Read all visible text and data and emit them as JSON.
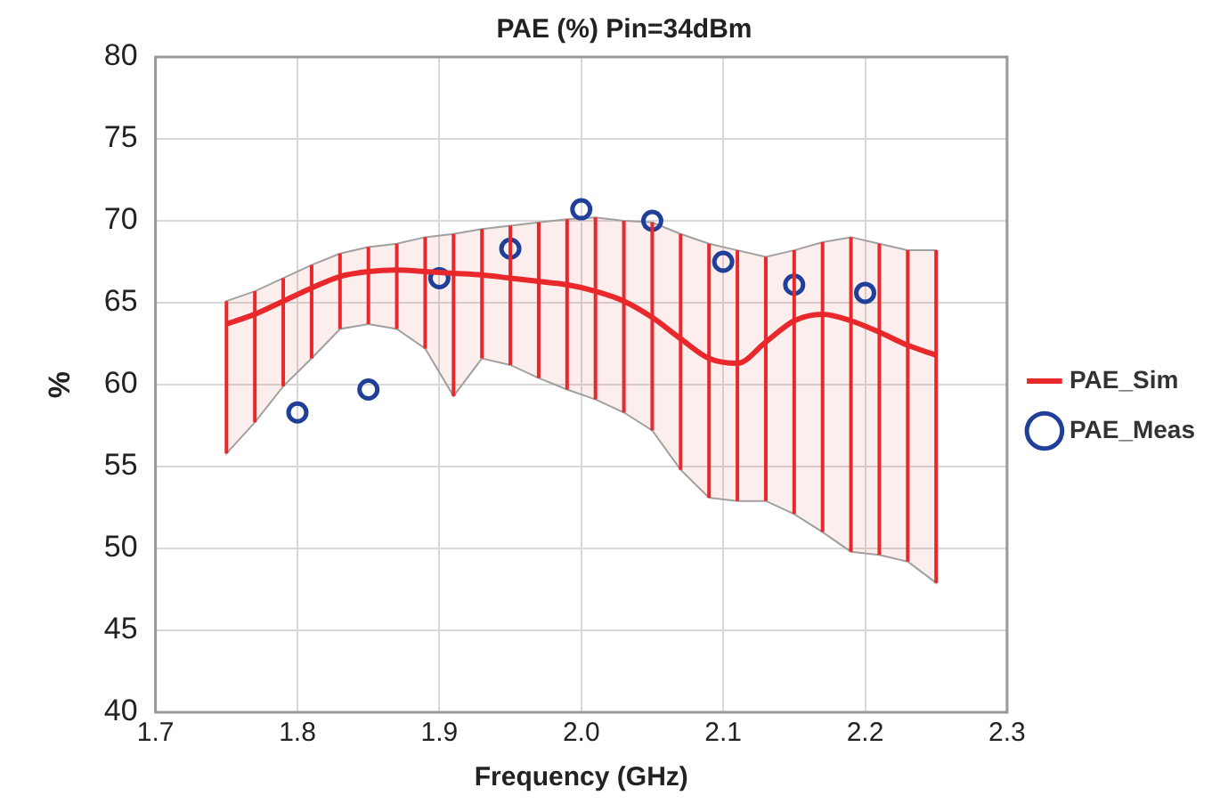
{
  "chart_data": {
    "type": "line",
    "title": "PAE (%) Pin=34dBm",
    "xlabel": "Frequency (GHz)",
    "ylabel": "%",
    "xlim": [
      1.7,
      2.3
    ],
    "xticks": [
      {
        "value": 1.7,
        "label": "1.7"
      },
      {
        "value": 1.8,
        "label": "1.8"
      },
      {
        "value": 1.9,
        "label": "1.9"
      },
      {
        "value": 2.0,
        "label": "2.0"
      },
      {
        "value": 2.1,
        "label": "2.1"
      },
      {
        "value": 2.2,
        "label": "2.2"
      },
      {
        "value": 2.3,
        "label": "2.3"
      }
    ],
    "ylim": [
      40,
      80
    ],
    "yticks": [
      40,
      45,
      50,
      55,
      60,
      65,
      70,
      75,
      80
    ],
    "grid": true,
    "legend": "right",
    "series": [
      {
        "name": "PAE_Sim",
        "color": "#e8282b",
        "marker": "none",
        "line_style": "solid",
        "x": [
          1.75,
          1.77,
          1.79,
          1.81,
          1.83,
          1.85,
          1.87,
          1.89,
          1.91,
          1.93,
          1.95,
          1.97,
          1.99,
          2.01,
          2.03,
          2.05,
          2.07,
          2.09,
          2.11,
          2.13,
          2.15,
          2.17,
          2.19,
          2.21,
          2.23,
          2.25
        ],
        "values": [
          63.7,
          64.3,
          65.1,
          65.9,
          66.6,
          66.9,
          67.0,
          66.9,
          66.8,
          66.7,
          66.5,
          66.3,
          66.1,
          65.7,
          65.1,
          64.1,
          62.8,
          61.6,
          61.3,
          62.6,
          63.9,
          64.3,
          63.9,
          63.2,
          62.4,
          61.8
        ],
        "upper": [
          65.1,
          65.7,
          66.5,
          67.3,
          68.0,
          68.4,
          68.6,
          69.0,
          69.2,
          69.5,
          69.7,
          69.9,
          70.1,
          70.2,
          70.0,
          69.9,
          69.2,
          68.6,
          68.2,
          67.8,
          68.2,
          68.7,
          69.0,
          68.6,
          68.2,
          68.2
        ],
        "lower": [
          55.8,
          57.7,
          59.9,
          61.6,
          63.4,
          63.7,
          63.4,
          62.2,
          59.3,
          61.6,
          61.2,
          60.4,
          59.7,
          59.1,
          58.3,
          57.2,
          54.8,
          53.1,
          52.9,
          52.9,
          52.1,
          51.0,
          49.8,
          49.6,
          49.2,
          47.9
        ],
        "errors": [
          [
            55.8,
            65.1
          ],
          [
            57.7,
            65.7
          ],
          [
            59.9,
            66.5
          ],
          [
            61.6,
            67.3
          ],
          [
            63.4,
            68.0
          ],
          [
            63.7,
            68.4
          ],
          [
            63.4,
            68.6
          ],
          [
            62.2,
            69.0
          ],
          [
            59.3,
            69.2
          ],
          [
            61.6,
            69.5
          ],
          [
            61.2,
            69.7
          ],
          [
            60.4,
            69.9
          ],
          [
            59.7,
            70.1
          ],
          [
            59.1,
            70.2
          ],
          [
            58.3,
            70.0
          ],
          [
            57.2,
            69.9
          ],
          [
            54.8,
            69.2
          ],
          [
            53.1,
            68.6
          ],
          [
            52.9,
            68.2
          ],
          [
            52.9,
            67.8
          ],
          [
            52.1,
            68.2
          ],
          [
            51.0,
            68.7
          ],
          [
            49.8,
            69.0
          ],
          [
            49.6,
            68.6
          ],
          [
            49.2,
            68.2
          ],
          [
            47.9,
            68.2
          ]
        ]
      },
      {
        "name": "PAE_Meas",
        "type": "scatter",
        "color": "#1f3f99",
        "marker": "circle",
        "x": [
          1.8,
          1.85,
          1.9,
          1.95,
          2.0,
          2.05,
          2.1,
          2.15,
          2.2
        ],
        "values": [
          58.3,
          59.7,
          66.5,
          68.3,
          70.7,
          70.0,
          67.5,
          66.1,
          65.6
        ]
      }
    ]
  }
}
